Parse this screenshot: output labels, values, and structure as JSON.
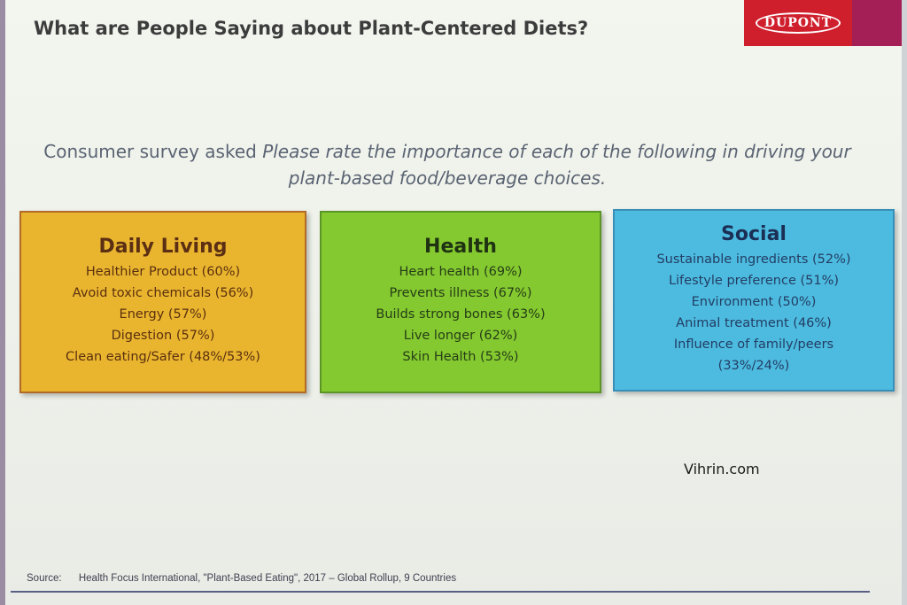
{
  "slide": {
    "title": "What are People Saying about Plant-Centered Diets?",
    "brand": "DUPONT",
    "question": {
      "prefix": "Consumer survey  asked",
      "italic": "Please rate the importance of each of the following in driving your plant-based food/beverage choices."
    },
    "categories": [
      {
        "heading": "Daily Living",
        "items": [
          "Healthier Product (60%)",
          "Avoid toxic chemicals (56%)",
          "Energy (57%)",
          "Digestion (57%)",
          "Clean eating/Safer (48%/53%)"
        ]
      },
      {
        "heading": "Health",
        "items": [
          "Heart health (69%)",
          "Prevents illness (67%)",
          "Builds strong bones (63%)",
          "Live longer (62%)",
          "Skin Health (53%)"
        ]
      },
      {
        "heading": "Social",
        "items": [
          "Sustainable ingredients (52%)",
          "Lifestyle preference (51%)",
          "Environment (50%)",
          "Animal treatment (46%)",
          "Influence of family/peers",
          "(33%/24%)"
        ]
      }
    ],
    "watermark": "Vihrin.com",
    "source": {
      "label": "Source:",
      "text": "Health Focus International, \"Plant-Based Eating\", 2017 – Global Rollup, 9 Countries"
    }
  },
  "colors": {
    "daily_living": "#eab52e",
    "health": "#84c92f",
    "social": "#4dbbe0",
    "brand_red": "#cf1f2d"
  }
}
